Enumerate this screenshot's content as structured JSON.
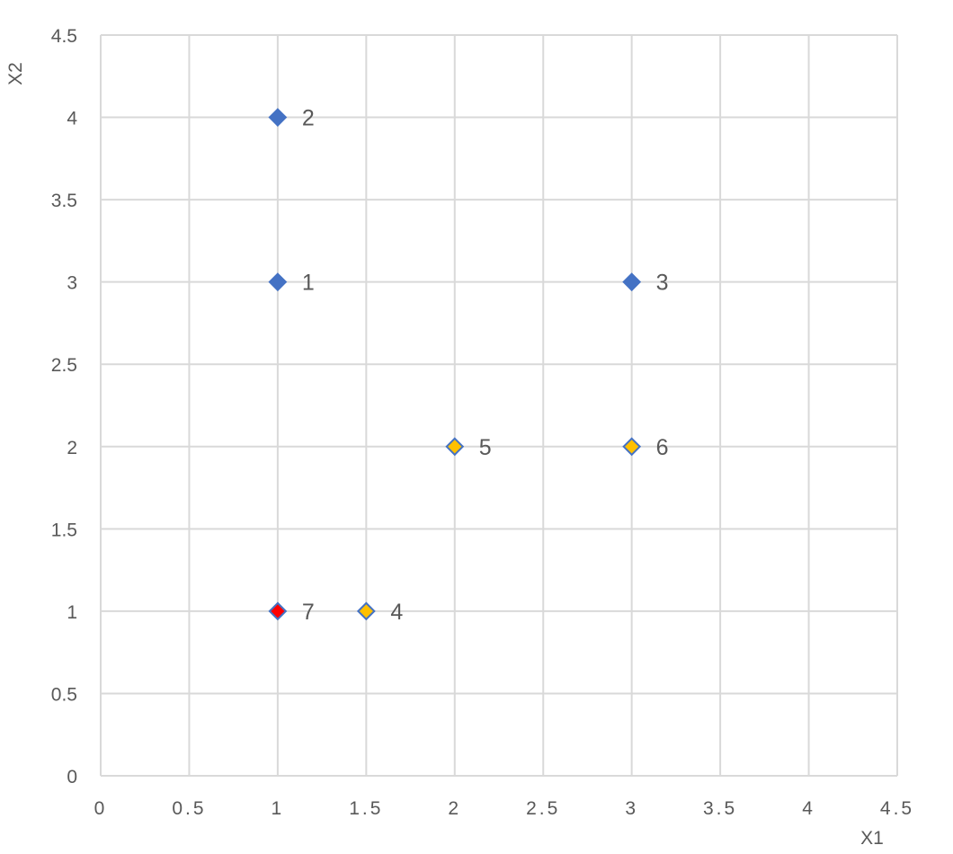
{
  "chart_data": {
    "type": "scatter",
    "xlabel": "X1",
    "ylabel": "X2",
    "xlim": [
      0,
      4.5
    ],
    "ylim": [
      0,
      4.5
    ],
    "x_ticks": [
      "0",
      "0.5",
      "1",
      "1.5",
      "2",
      "2.5",
      "3",
      "3.5",
      "4",
      "4.5"
    ],
    "y_ticks": [
      "0",
      "0.5",
      "1",
      "1.5",
      "2",
      "2.5",
      "3",
      "3.5",
      "4",
      "4.5"
    ],
    "grid": true,
    "legend": "none",
    "points": [
      {
        "x": 1,
        "y": 3,
        "label": "1",
        "color": "#4472c4"
      },
      {
        "x": 1,
        "y": 4,
        "label": "2",
        "color": "#4472c4"
      },
      {
        "x": 3,
        "y": 3,
        "label": "3",
        "color": "#4472c4"
      },
      {
        "x": 1.5,
        "y": 1,
        "label": "4",
        "color": "#ffc000"
      },
      {
        "x": 2,
        "y": 2,
        "label": "5",
        "color": "#ffc000"
      },
      {
        "x": 3,
        "y": 2,
        "label": "6",
        "color": "#ffc000"
      },
      {
        "x": 1,
        "y": 1,
        "label": "7",
        "color": "#ff0000"
      }
    ],
    "marker_outline_color": "#4472c4"
  }
}
